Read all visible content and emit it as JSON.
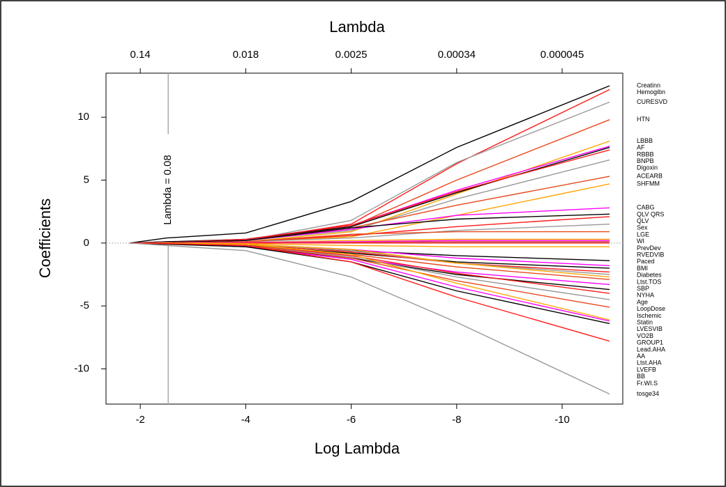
{
  "chart_data": {
    "type": "line",
    "title": "Lambda",
    "x_label": "Log Lambda",
    "y_label": "Coefficients",
    "xlim": [
      -1.35,
      -11.15
    ],
    "ylim": [
      -12.8,
      13.5
    ],
    "xticks": [
      -2,
      -4,
      -6,
      -8,
      -10
    ],
    "x2ticks": [
      {
        "value": -2,
        "label": "0.14"
      },
      {
        "value": -4,
        "label": "0.018"
      },
      {
        "value": -6,
        "label": "0.0025"
      },
      {
        "value": -8,
        "label": "0.00034"
      },
      {
        "value": -10,
        "label": "0.000045"
      }
    ],
    "yticks": [
      -10,
      -5,
      0,
      5,
      10
    ],
    "annotations": [
      {
        "text": "Lambda = 0.08",
        "x": -2.53
      }
    ],
    "x": [
      -1.8,
      -2.5,
      -4,
      -6,
      -8,
      -10.9
    ],
    "series": [
      {
        "name": "Creatinn",
        "color": "#000000",
        "values": [
          0,
          0.4,
          0.8,
          3.3,
          7.6,
          12.5
        ]
      },
      {
        "name": "Hemogibn",
        "color": "#ff1a1a",
        "values": [
          0,
          0.1,
          0.2,
          1.5,
          6.3,
          12.2
        ]
      },
      {
        "name": "CURESVD",
        "color": "#999999",
        "values": [
          0,
          0.1,
          0.2,
          1.8,
          6.4,
          11.2
        ]
      },
      {
        "name": "HTN",
        "color": "#e8491d",
        "values": [
          0,
          0.05,
          0.2,
          1.3,
          5.0,
          9.8
        ]
      },
      {
        "name": "LBBB",
        "color": "#ffa500",
        "values": [
          0,
          0.05,
          0.1,
          0.9,
          3.9,
          8.1
        ]
      },
      {
        "name": "AF",
        "color": "#ff00ff",
        "values": [
          0,
          0.05,
          0.3,
          1.4,
          4.2,
          7.7
        ]
      },
      {
        "name": "RBBB",
        "color": "#000000",
        "values": [
          0,
          0.1,
          0.3,
          1.3,
          4.0,
          7.6
        ]
      },
      {
        "name": "BNPB",
        "color": "#ff1a1a",
        "values": [
          0,
          0.05,
          0.3,
          1.4,
          4.1,
          7.4
        ]
      },
      {
        "name": "Digoxin",
        "color": "#999999",
        "values": [
          0,
          0.05,
          0.2,
          1.0,
          3.5,
          6.6
        ]
      },
      {
        "name": "ACEARB",
        "color": "#e8491d",
        "values": [
          0,
          0.05,
          0.2,
          1.2,
          3.0,
          5.3
        ]
      },
      {
        "name": "SHFMM",
        "color": "#ffa500",
        "values": [
          0,
          0.02,
          0.1,
          0.5,
          2.2,
          4.7
        ]
      },
      {
        "name": "CABG",
        "color": "#ff00ff",
        "values": [
          0,
          0.05,
          0.2,
          1.1,
          2.2,
          2.8
        ]
      },
      {
        "name": "QLV QRS",
        "color": "#000000",
        "values": [
          0,
          0.05,
          0.2,
          1.2,
          1.9,
          2.3
        ]
      },
      {
        "name": "QLV",
        "color": "#ff1a1a",
        "values": [
          0,
          0.02,
          0.1,
          0.6,
          1.3,
          2.1
        ]
      },
      {
        "name": "Sex",
        "color": "#999999",
        "values": [
          0,
          0.02,
          0.1,
          0.4,
          1.0,
          1.5
        ]
      },
      {
        "name": "LGE",
        "color": "#e8491d",
        "values": [
          0,
          0.02,
          0.1,
          0.7,
          0.9,
          0.9
        ]
      },
      {
        "name": "WI",
        "color": "#ffa500",
        "values": [
          0,
          0.01,
          0.05,
          0.2,
          0.3,
          0.3
        ]
      },
      {
        "name": "PrevDev",
        "color": "#ff00ff",
        "values": [
          0,
          0.01,
          0.05,
          0.1,
          0.2,
          0.2
        ]
      },
      {
        "name": "RVEDVIB",
        "color": "#ff1a1a",
        "values": [
          0,
          0.01,
          0.02,
          0.05,
          0.1,
          0.1
        ]
      },
      {
        "name": "Paced",
        "color": "#999999",
        "values": [
          0,
          0,
          0.01,
          0.02,
          0.05,
          0.05
        ]
      },
      {
        "name": "BMI",
        "color": "#ff1a1a",
        "values": [
          0,
          0,
          0,
          0,
          0,
          0
        ]
      },
      {
        "name": "Diabetes",
        "color": "#000000",
        "values": [
          0,
          -0.05,
          -0.2,
          -0.6,
          -1.0,
          -1.4
        ]
      },
      {
        "name": "Ltst.TOS",
        "color": "#ffa500",
        "values": [
          0,
          0,
          -0.05,
          -0.2,
          -0.3,
          -0.3
        ]
      },
      {
        "name": "SBP",
        "color": "#ff00ff",
        "values": [
          0,
          -0.02,
          -0.1,
          -0.5,
          -1.2,
          -1.8
        ]
      },
      {
        "name": "NYHA",
        "color": "#000000",
        "values": [
          0,
          -0.05,
          -0.2,
          -0.8,
          -1.5,
          -2.0
        ]
      },
      {
        "name": "Age",
        "color": "#ff1a1a",
        "values": [
          0,
          -0.05,
          -0.1,
          -0.7,
          -1.6,
          -2.3
        ]
      },
      {
        "name": "LoopDose",
        "color": "#999999",
        "values": [
          0,
          -0.02,
          -0.1,
          -0.6,
          -1.6,
          -2.5
        ]
      },
      {
        "name": "Ischemic",
        "color": "#e8491d",
        "values": [
          0,
          -0.05,
          -0.2,
          -0.9,
          -1.9,
          -2.9
        ]
      },
      {
        "name": "Statin",
        "color": "#ffa500",
        "values": [
          0,
          -0.02,
          -0.1,
          -0.5,
          -1.6,
          -2.7
        ]
      },
      {
        "name": "LVESVIB",
        "color": "#ff00ff",
        "values": [
          0,
          -0.05,
          -0.2,
          -1.2,
          -2.3,
          -3.3
        ]
      },
      {
        "name": "VO2B",
        "color": "#000000",
        "values": [
          0,
          -0.05,
          -0.3,
          -1.2,
          -2.5,
          -3.7
        ]
      },
      {
        "name": "GROUP1",
        "color": "#ff1a1a",
        "values": [
          0,
          -0.05,
          -0.2,
          -1.0,
          -2.4,
          -4.0
        ]
      },
      {
        "name": "Lead.AHA",
        "color": "#999999",
        "values": [
          0,
          -0.05,
          -0.2,
          -1.1,
          -2.7,
          -4.5
        ]
      },
      {
        "name": "AA",
        "color": "#e8491d",
        "values": [
          0,
          -0.05,
          -0.2,
          -1.2,
          -3.0,
          -5.1
        ]
      },
      {
        "name": "Ltst.AHA",
        "color": "#ffa500",
        "values": [
          0,
          -0.02,
          -0.1,
          -0.9,
          -3.2,
          -6.1
        ]
      },
      {
        "name": "LVEFB",
        "color": "#ff00ff",
        "values": [
          0,
          -0.05,
          -0.3,
          -1.3,
          -3.5,
          -6.2
        ]
      },
      {
        "name": "BB",
        "color": "#000000",
        "values": [
          0,
          -0.1,
          -0.3,
          -1.5,
          -3.8,
          -6.4
        ]
      },
      {
        "name": "Fr.WI.S",
        "color": "#ff1a1a",
        "values": [
          0,
          -0.05,
          -0.2,
          -1.5,
          -4.3,
          -7.8
        ]
      },
      {
        "name": "tosge34",
        "color": "#999999",
        "values": [
          0,
          -0.2,
          -0.6,
          -2.7,
          -6.3,
          -12.0
        ]
      }
    ]
  }
}
